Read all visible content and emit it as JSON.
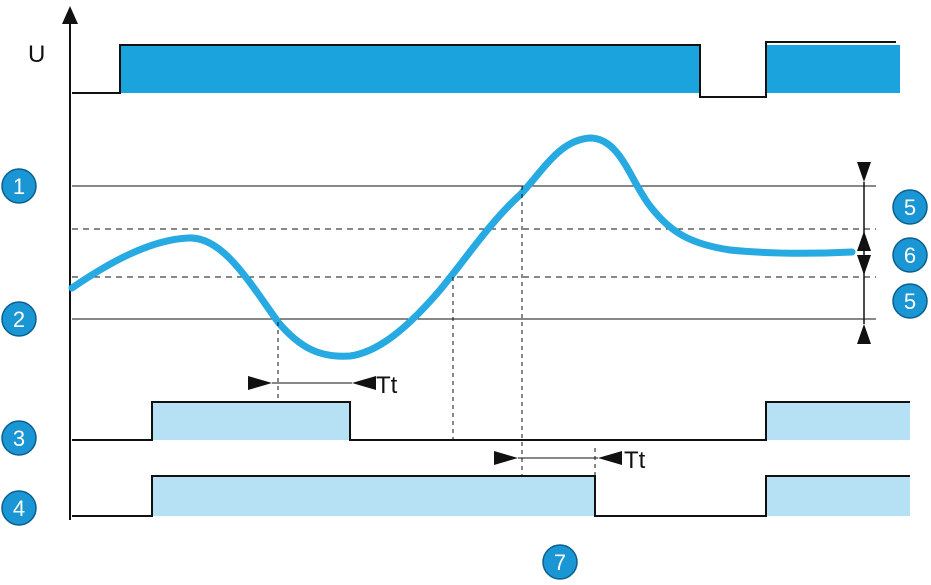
{
  "labels": {
    "u_axis": "U",
    "delay_time": "Tt",
    "badge_1": "1",
    "badge_2": "2",
    "badge_3": "3",
    "badge_4": "4",
    "badge_5_upper": "5",
    "badge_6": "6",
    "badge_5_lower": "5",
    "badge_7": "7"
  },
  "colors": {
    "supply_fill": "#1aa3dc",
    "signal_curve": "#26aae1",
    "output_fill": "#b6e1f4",
    "badge_fill": "#1a96d4",
    "line": "#111111"
  }
}
